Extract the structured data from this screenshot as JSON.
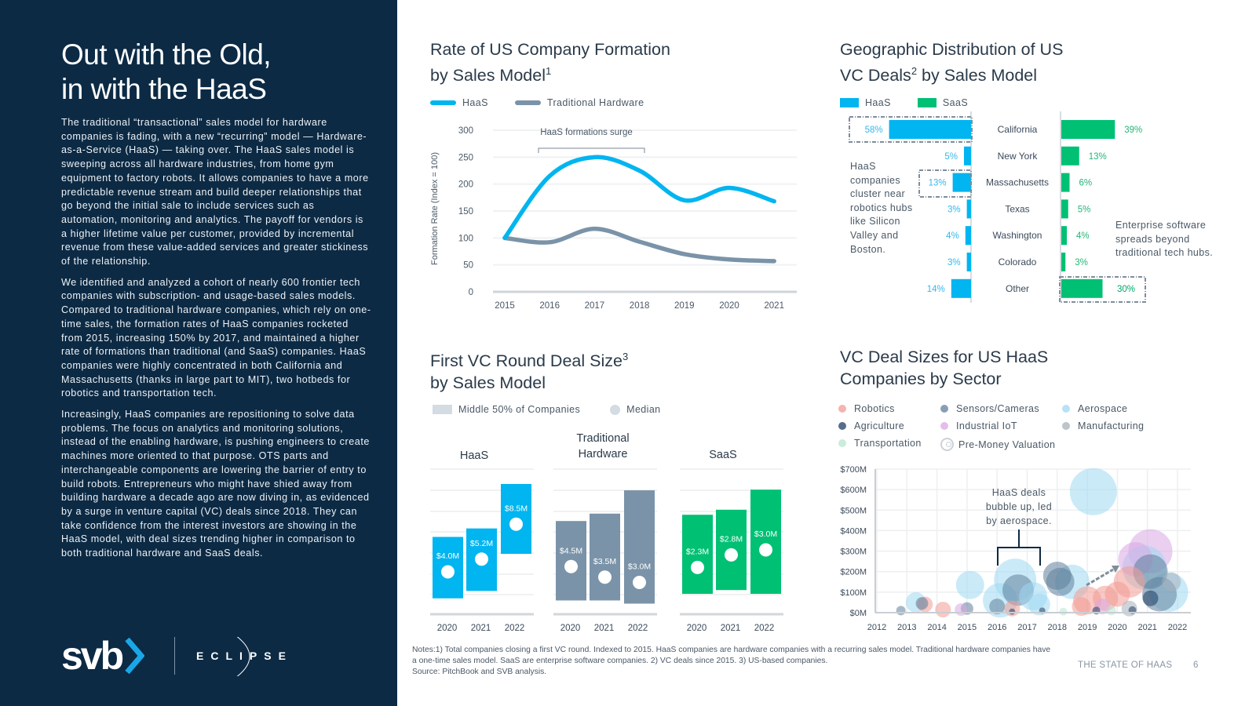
{
  "left": {
    "title": "Out with the Old,\nin with the HaaS",
    "paragraphs": [
      "The traditional “transactional” sales model for hardware companies is fading, with a new “recurring” model — Hardware-as-a-Service (HaaS) — taking over. The HaaS sales model is sweeping across all hardware industries, from home gym equipment to factory robots. It allows companies to have a more predictable revenue stream and build deeper relationships that go beyond the initial sale to include services such as automation, monitoring and analytics. The payoff for vendors is a higher lifetime value per customer, provided by incremental revenue from these value-added services and greater stickiness of the relationship.",
      "We identified and analyzed a cohort of nearly 600 frontier tech companies with subscription- and usage-based sales models. Compared to traditional hardware companies, which rely on one-time sales, the formation rates of HaaS companies rocketed from 2015, increasing 150% by 2017, and maintained a higher rate of formations than traditional (and SaaS) companies. HaaS companies were highly concentrated in both California and Massachusetts (thanks in large part to MIT), two hotbeds for robotics and transportation tech.",
      "Increasingly, HaaS companies are repositioning to solve data problems. The focus on analytics and monitoring solutions, instead of the enabling hardware, is pushing engineers to create machines more oriented to that purpose. OTS parts and interchangeable components are lowering the barrier of entry to build robots. Entrepreneurs who might have shied away from building hardware a decade ago are now diving in, as evidenced by a surge in venture capital (VC) deals since 2018. They can take confidence from the interest investors are showing in the HaaS model, with deal sizes trending higher in comparison to both traditional hardware and SaaS deals."
    ],
    "logos": {
      "svb": "svb",
      "eclipse": "ECLIPSE"
    }
  },
  "colors": {
    "navy": "#0c2a44",
    "haas": "#00b5f0",
    "traditional": "#7a93a8",
    "saas": "#00c074"
  },
  "chart_data": [
    {
      "type": "line",
      "title": "Rate of US Company Formation by Sales Model",
      "title_main": "Rate of US Company Formation",
      "title_line2": "by Sales Model",
      "footnote_mark": "1",
      "ylabel": "Formation Rate (Index = 100)",
      "ylim": [
        0,
        300
      ],
      "yticks": [
        "0",
        "50",
        "100",
        "150",
        "200",
        "250",
        "300"
      ],
      "x": [
        "2015",
        "2016",
        "2017",
        "2018",
        "2019",
        "2020",
        "2021"
      ],
      "series": [
        {
          "name": "HaaS",
          "color": "#00b5f0",
          "values": [
            100,
            215,
            250,
            225,
            170,
            193,
            168
          ]
        },
        {
          "name": "Traditional Hardware",
          "color": "#7a93a8",
          "values": [
            100,
            92,
            117,
            93,
            70,
            60,
            57
          ]
        }
      ],
      "annotation": "HaaS formations surge",
      "grid": true,
      "legend": "top-left"
    },
    {
      "type": "bar",
      "title_main": "Geographic Distribution of US",
      "title_line2_pre": "VC Deals",
      "footnote_mark": "2",
      "title_line2_post": " by Sales Model",
      "categories": [
        "California",
        "New York",
        "Massachusetts",
        "Texas",
        "Washington",
        "Colorado",
        "Other"
      ],
      "series": [
        {
          "name": "HaaS",
          "color": "#00b5f0",
          "values": [
            58,
            5,
            13,
            3,
            4,
            3,
            14
          ],
          "labels": [
            "58%",
            "5%",
            "13%",
            "3%",
            "4%",
            "3%",
            "14%"
          ]
        },
        {
          "name": "SaaS",
          "color": "#00c074",
          "values": [
            39,
            13,
            6,
            5,
            4,
            3,
            30
          ],
          "labels": [
            "39%",
            "13%",
            "6%",
            "5%",
            "4%",
            "3%",
            "30%"
          ]
        }
      ],
      "annotations": {
        "haas": "HaaS companies cluster near robotics hubs like Silicon Valley and Boston.",
        "saas": "Enterprise software spreads beyond traditional tech hubs."
      },
      "legend": "top-left"
    },
    {
      "type": "bar",
      "title_main": "First VC Round Deal Size",
      "footnote_mark": "3",
      "title_line2": "by Sales Model",
      "legend": {
        "range": "Middle 50% of Companies",
        "median": "Median"
      },
      "value_unit": "$M",
      "panels": [
        {
          "name": "HaaS",
          "color": "#00b5f0",
          "years": [
            "2020",
            "2021",
            "2022"
          ],
          "box_low": [
            1.5,
            2.2,
            5.7
          ],
          "box_high": [
            7.3,
            8.1,
            12.3
          ],
          "median": [
            4.0,
            5.2,
            8.5
          ],
          "labels": [
            "$4.0M",
            "$5.2M",
            "$8.5M"
          ]
        },
        {
          "name": "Traditional\nHardware",
          "color": "#7a93a8",
          "years": [
            "2020",
            "2021",
            "2022"
          ],
          "box_low": [
            1.3,
            1.3,
            1.0
          ],
          "box_high": [
            8.8,
            9.5,
            11.7
          ],
          "median": [
            4.5,
            3.5,
            3.0
          ],
          "labels": [
            "$4.5M",
            "$3.5M",
            "$3.0M"
          ]
        },
        {
          "name": "SaaS",
          "color": "#00c074",
          "years": [
            "2020",
            "2021",
            "2022"
          ],
          "box_low": [
            1.25,
            1.4,
            1.25
          ],
          "box_high": [
            4.4,
            4.6,
            5.4
          ],
          "median": [
            2.3,
            2.8,
            3.0
          ],
          "labels": [
            "$2.3M",
            "$2.8M",
            "$3.0M"
          ]
        }
      ]
    },
    {
      "type": "scatter",
      "title_main": "VC Deal Sizes for US HaaS",
      "title_line2": "Companies by Sector",
      "ylim": [
        0,
        700
      ],
      "yticks": [
        "$0M",
        "$100M",
        "$200M",
        "$300M",
        "$400M",
        "$500M",
        "$600M",
        "$700M"
      ],
      "xlim": [
        2012,
        2022
      ],
      "xticks": [
        "2012",
        "2013",
        "2014",
        "2015",
        "2016",
        "2017",
        "2018",
        "2019",
        "2020",
        "2021",
        "2022"
      ],
      "grid": true,
      "sectors": [
        {
          "key": "robotics",
          "name": "Robotics",
          "color": "#f39a94"
        },
        {
          "key": "sensors",
          "name": "Sensors/Cameras",
          "color": "#5f7f9a"
        },
        {
          "key": "aerospace",
          "name": "Aerospace",
          "color": "#9fd8f2"
        },
        {
          "key": "agriculture",
          "name": "Agriculture",
          "color": "#1d3d63"
        },
        {
          "key": "industrial",
          "name": "Industrial IoT",
          "color": "#d9a8e4"
        },
        {
          "key": "manufacturing",
          "name": "Manufacturing",
          "color": "#a5b0bb"
        },
        {
          "key": "transportation",
          "name": "Transportation",
          "color": "#b8e6cf"
        }
      ],
      "size_legend": "Pre-Money Valuation",
      "annotation": "HaaS deals bubble up, led by aerospace.",
      "points": [
        [
          2019.2,
          590,
          30,
          "aerospace"
        ],
        [
          2016.6,
          160,
          27,
          "aerospace"
        ],
        [
          2016.7,
          110,
          20,
          "sensors"
        ],
        [
          2016.1,
          60,
          22,
          "aerospace"
        ],
        [
          2015.1,
          135,
          18,
          "aerospace"
        ],
        [
          2013.3,
          50,
          13,
          "aerospace"
        ],
        [
          2013.6,
          40,
          10,
          "robotics"
        ],
        [
          2013.5,
          45,
          8,
          "sensors"
        ],
        [
          2014.2,
          15,
          10,
          "robotics"
        ],
        [
          2018.5,
          150,
          22,
          "aerospace"
        ],
        [
          2018.0,
          180,
          18,
          "sensors"
        ],
        [
          2018.1,
          150,
          18,
          "sensors"
        ],
        [
          2021.1,
          300,
          28,
          "industrial"
        ],
        [
          2020.6,
          260,
          22,
          "industrial"
        ],
        [
          2020.9,
          220,
          28,
          "aerospace"
        ],
        [
          2021.1,
          200,
          22,
          "sensors"
        ],
        [
          2020.4,
          150,
          20,
          "robotics"
        ],
        [
          2021.7,
          100,
          25,
          "aerospace"
        ],
        [
          2021.4,
          90,
          22,
          "sensors"
        ],
        [
          2021.1,
          70,
          10,
          "agriculture"
        ],
        [
          2019.0,
          60,
          18,
          "robotics"
        ],
        [
          2019.6,
          70,
          16,
          "robotics"
        ],
        [
          2020.0,
          90,
          16,
          "robotics"
        ],
        [
          2017.2,
          80,
          18,
          "aerospace"
        ],
        [
          2017.4,
          40,
          14,
          "aerospace"
        ],
        [
          2016.0,
          30,
          10,
          "sensors"
        ],
        [
          2015.0,
          20,
          8,
          "sensors"
        ],
        [
          2014.8,
          15,
          8,
          "industrial"
        ],
        [
          2012.8,
          10,
          6,
          "sensors"
        ],
        [
          2016.5,
          20,
          10,
          "robotics"
        ],
        [
          2018.8,
          30,
          12,
          "robotics"
        ],
        [
          2019.5,
          30,
          10,
          "industrial"
        ],
        [
          2020.4,
          20,
          10,
          "manufacturing"
        ],
        [
          2021.8,
          150,
          12,
          "manufacturing"
        ],
        [
          2017.5,
          10,
          4,
          "agriculture"
        ],
        [
          2019.3,
          10,
          5,
          "agriculture"
        ],
        [
          2020.5,
          12,
          5,
          "agriculture"
        ],
        [
          2018.2,
          5,
          5,
          "transportation"
        ],
        [
          2019.8,
          10,
          6,
          "transportation"
        ],
        [
          2016.5,
          5,
          4,
          "agriculture"
        ]
      ]
    }
  ],
  "footer": {
    "notes": "Notes:1) Total companies closing a first VC round. Indexed to 2015. HaaS companies are hardware companies with a recurring sales model. Traditional hardware companies have a one-time sales model. SaaS are enterprise software companies. 2) VC deals since 2015. 3) US-based companies.",
    "source": "Source: PitchBook and SVB analysis.",
    "report_title": "THE STATE OF HAAS",
    "page_number": "6"
  }
}
